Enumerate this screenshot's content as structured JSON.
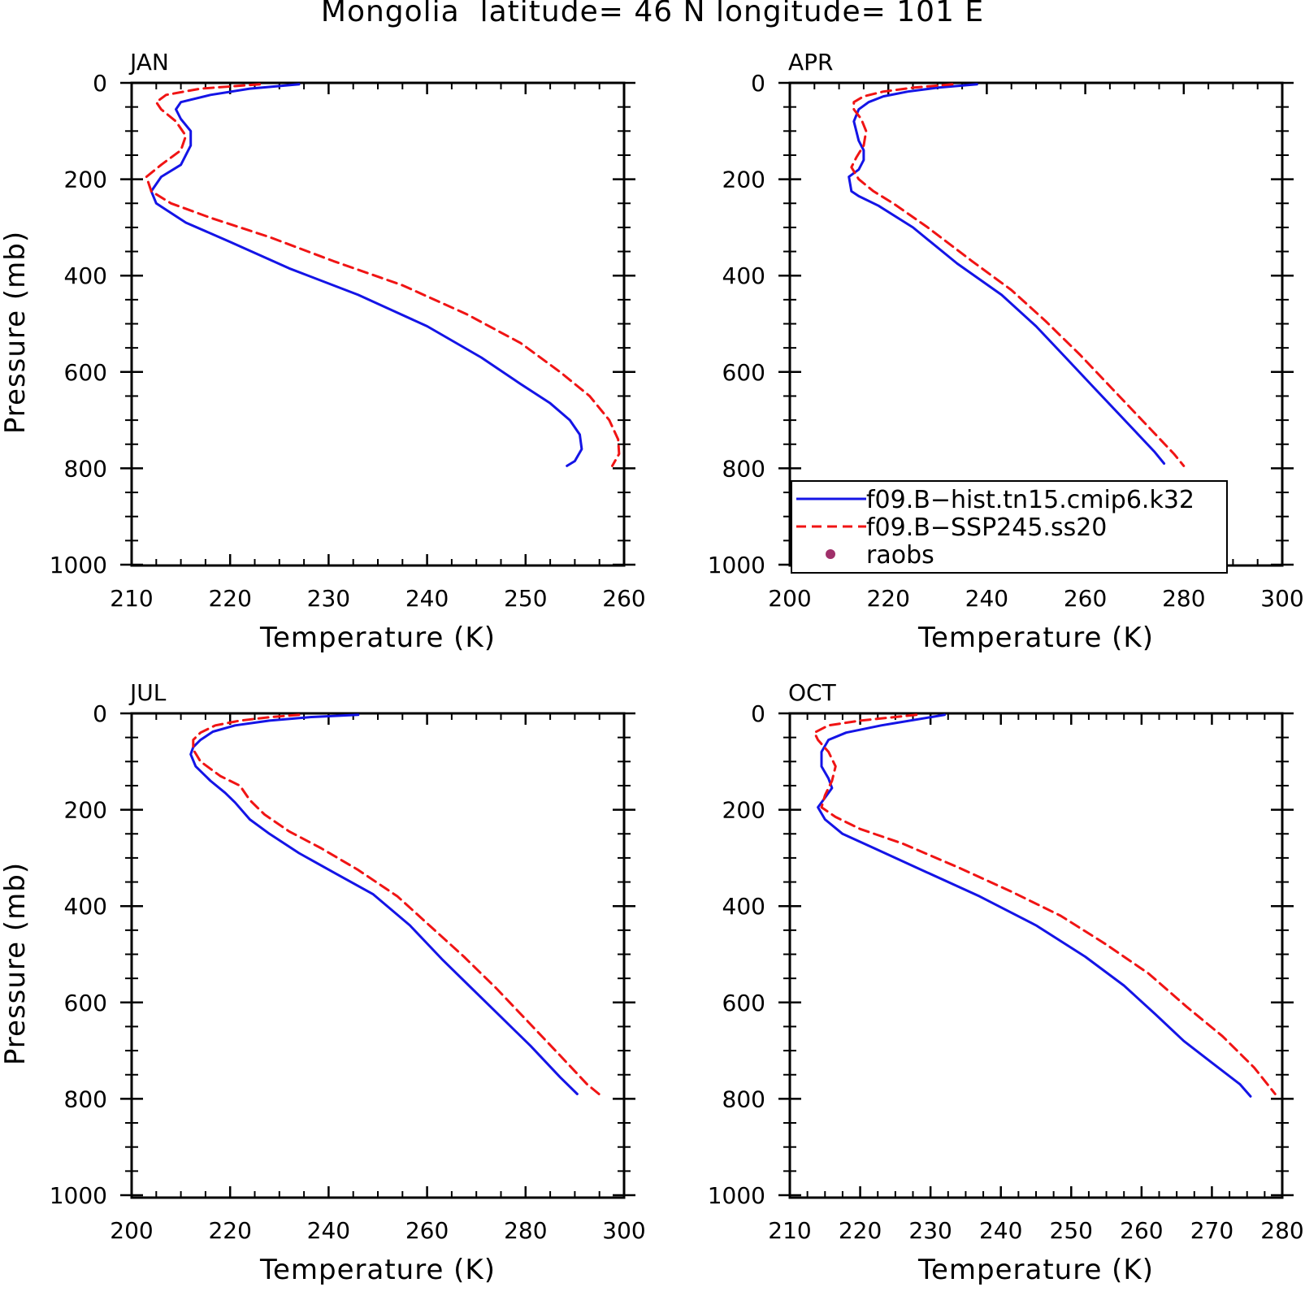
{
  "title": "Mongolia  latitude= 46 N longitude= 101 E",
  "legend": {
    "entries": [
      {
        "label": "f09.B−hist.tn15.cmip6.k32",
        "style": "solid",
        "color": "#1414e6"
      },
      {
        "label": "f09.B−SSP245.ss20",
        "style": "dashed",
        "color": "#f01414"
      },
      {
        "label": "raobs",
        "style": "dot",
        "color": "#a0306a"
      }
    ]
  },
  "chart_data": [
    {
      "type": "line",
      "panel_label": "JAN",
      "xlabel": "Temperature (K)",
      "ylabel": "Pressure (mb)",
      "xlim": [
        210,
        260
      ],
      "ylim": [
        0,
        1030
      ],
      "y_inverted": true,
      "xticks": [
        "210",
        "220",
        "230",
        "240",
        "250",
        "260"
      ],
      "yticks": [
        "0",
        "200",
        "400",
        "600",
        "800",
        "1000"
      ],
      "series": [
        {
          "name": "f09.B−hist.tn15.cmip6.k32",
          "color": "#1414e6",
          "style": "solid",
          "x": [
            227.0,
            222.0,
            218.0,
            215.0,
            214.5,
            215.0,
            216.0,
            216.0,
            215.0,
            213.0,
            212.0,
            212.5,
            215.5,
            220.0,
            226.0,
            233.0,
            240.0,
            245.5,
            249.5,
            252.5,
            254.5,
            255.5,
            255.7,
            255.0,
            254.2
          ],
          "y": [
            3,
            12,
            25,
            40,
            55,
            75,
            100,
            130,
            170,
            195,
            225,
            250,
            290,
            330,
            385,
            440,
            505,
            570,
            625,
            665,
            700,
            730,
            760,
            785,
            795
          ]
        },
        {
          "name": "f09.B−SSP245.ss20",
          "color": "#f01414",
          "style": "dashed",
          "x": [
            223.0,
            217.0,
            213.5,
            212.5,
            213.0,
            214.5,
            215.5,
            215.0,
            213.0,
            211.5,
            212.0,
            214.0,
            218.0,
            224.0,
            230.5,
            237.5,
            244.0,
            249.5,
            253.5,
            256.5,
            258.5,
            259.4,
            259.5,
            258.8
          ],
          "y": [
            3,
            12,
            25,
            40,
            55,
            80,
            110,
            140,
            170,
            195,
            225,
            250,
            280,
            320,
            370,
            420,
            480,
            540,
            600,
            650,
            700,
            740,
            770,
            795
          ]
        }
      ]
    },
    {
      "type": "line",
      "panel_label": "APR",
      "xlabel": "Temperature (K)",
      "ylabel": "",
      "xlim": [
        200,
        300
      ],
      "ylim": [
        0,
        1030
      ],
      "y_inverted": true,
      "xticks": [
        "200",
        "220",
        "240",
        "260",
        "280",
        "300"
      ],
      "yticks": [
        "0",
        "200",
        "400",
        "600",
        "800",
        "1000"
      ],
      "series": [
        {
          "name": "f09.B−hist.tn15.cmip6.k32",
          "color": "#1414e6",
          "style": "solid",
          "x": [
            238.0,
            230.0,
            224.0,
            219.0,
            216.0,
            214.0,
            213.0,
            213.5,
            214.0,
            215.0,
            215.0,
            214.0,
            212.0,
            212.5,
            214.0,
            218.0,
            225.0,
            234.0,
            243.0,
            250.0,
            256.0,
            262.0,
            268.0,
            274.0,
            276.0
          ],
          "y": [
            3,
            10,
            18,
            28,
            40,
            55,
            80,
            100,
            120,
            140,
            160,
            180,
            195,
            225,
            235,
            255,
            300,
            375,
            440,
            505,
            570,
            635,
            700,
            765,
            790
          ]
        },
        {
          "name": "f09.B−SSP245.ss20",
          "color": "#f01414",
          "style": "dashed",
          "x": [
            233.0,
            225.0,
            219.0,
            215.0,
            213.0,
            213.0,
            214.5,
            215.5,
            215.0,
            213.5,
            212.5,
            214.0,
            217.0,
            221.0,
            228.0,
            237.0,
            245.0,
            252.0,
            259.0,
            265.5,
            272.0,
            278.0,
            280.0
          ],
          "y": [
            3,
            10,
            18,
            28,
            40,
            55,
            75,
            100,
            130,
            155,
            175,
            200,
            225,
            250,
            300,
            370,
            430,
            495,
            565,
            635,
            705,
            770,
            795
          ]
        }
      ]
    },
    {
      "type": "line",
      "panel_label": "JUL",
      "xlabel": "Temperature (K)",
      "ylabel": "Pressure (mb)",
      "xlim": [
        200,
        300
      ],
      "ylim": [
        0,
        1030
      ],
      "y_inverted": true,
      "xticks": [
        "200",
        "220",
        "240",
        "260",
        "280",
        "300"
      ],
      "yticks": [
        "0",
        "200",
        "400",
        "600",
        "800",
        "1000"
      ],
      "series": [
        {
          "name": "f09.B−hist.tn15.cmip6.k32",
          "color": "#1414e6",
          "style": "solid",
          "x": [
            246.0,
            236.0,
            228.0,
            221.0,
            216.5,
            214.0,
            212.5,
            212.0,
            213.0,
            216.0,
            219.0,
            221.0,
            224.0,
            228.0,
            234.0,
            241.0,
            249.0,
            256.5,
            263.0,
            269.0,
            275.0,
            281.0,
            287.0,
            290.5
          ],
          "y": [
            3,
            8,
            15,
            25,
            38,
            55,
            70,
            85,
            110,
            140,
            165,
            185,
            220,
            250,
            290,
            330,
            375,
            440,
            510,
            570,
            630,
            690,
            755,
            790
          ]
        },
        {
          "name": "f09.B−SSP245.ss20",
          "color": "#f01414",
          "style": "dashed",
          "x": [
            234.0,
            228.0,
            222.0,
            217.0,
            214.0,
            212.5,
            212.5,
            214.0,
            218.0,
            222.0,
            224.0,
            227.0,
            232.0,
            238.5,
            246.0,
            254.0,
            261.0,
            267.5,
            274.0,
            280.5,
            287.0,
            292.5,
            295.5
          ],
          "y": [
            3,
            8,
            15,
            25,
            40,
            55,
            75,
            100,
            130,
            150,
            180,
            210,
            245,
            280,
            325,
            380,
            445,
            505,
            570,
            640,
            710,
            770,
            795
          ]
        }
      ]
    },
    {
      "type": "line",
      "panel_label": "OCT",
      "xlabel": "Temperature (K)",
      "ylabel": "",
      "xlim": [
        210,
        280
      ],
      "ylim": [
        0,
        1030
      ],
      "y_inverted": true,
      "xticks": [
        "210",
        "220",
        "230",
        "240",
        "250",
        "260",
        "270",
        "280"
      ],
      "yticks": [
        "0",
        "200",
        "400",
        "600",
        "800",
        "1000"
      ],
      "series": [
        {
          "name": "f09.B−hist.tn15.cmip6.k32",
          "color": "#1414e6",
          "style": "solid",
          "x": [
            232.0,
            223.0,
            218.0,
            215.5,
            214.5,
            214.5,
            215.5,
            216.0,
            215.0,
            214.0,
            215.0,
            217.5,
            222.0,
            229.5,
            237.0,
            245.0,
            252.0,
            257.5,
            262.0,
            266.0,
            270.0,
            274.0,
            275.5
          ],
          "y": [
            3,
            25,
            40,
            55,
            80,
            110,
            135,
            155,
            175,
            195,
            220,
            250,
            280,
            330,
            380,
            440,
            505,
            565,
            625,
            680,
            725,
            770,
            795
          ]
        },
        {
          "name": "f09.B−SSP245.ss20",
          "color": "#f01414",
          "style": "dashed",
          "x": [
            228.0,
            220.0,
            215.5,
            213.5,
            214.0,
            215.5,
            216.5,
            216.0,
            215.0,
            214.5,
            216.5,
            220.0,
            226.0,
            234.0,
            241.5,
            248.5,
            255.0,
            261.0,
            266.5,
            271.5,
            276.0,
            279.0
          ],
          "y": [
            3,
            15,
            25,
            40,
            55,
            80,
            110,
            140,
            170,
            195,
            215,
            240,
            270,
            320,
            370,
            420,
            480,
            540,
            610,
            670,
            735,
            790
          ]
        }
      ]
    }
  ]
}
